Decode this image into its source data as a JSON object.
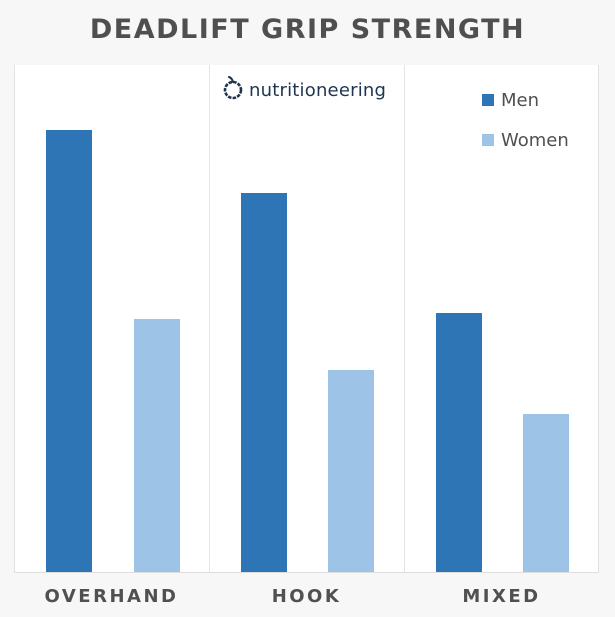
{
  "chart_data": {
    "type": "bar",
    "title": "DEADLIFT GRIP STRENGTH",
    "categories": [
      "OVERHAND",
      "HOOK",
      "MIXED"
    ],
    "series": [
      {
        "name": "Men",
        "color": "#2e75b6",
        "values": [
          442,
          379,
          259
        ]
      },
      {
        "name": "Women",
        "color": "#9dc3e6",
        "values": [
          253,
          202,
          158
        ]
      }
    ],
    "xlabel": "",
    "ylabel": "",
    "ylim": [
      0,
      508
    ],
    "y_axis_visible": false,
    "grid": false,
    "legend_position": "top-right",
    "annotations": [
      "nutritioneering"
    ]
  },
  "title": "DEADLIFT GRIP STRENGTH",
  "logo": {
    "icon": "apple-icon",
    "text": "nutritioneering"
  },
  "legend": [
    {
      "label": "Men",
      "color": "#2e75b6"
    },
    {
      "label": "Women",
      "color": "#9dc3e6"
    }
  ],
  "categories": [
    "OVERHAND",
    "HOOK",
    "MIXED"
  ]
}
